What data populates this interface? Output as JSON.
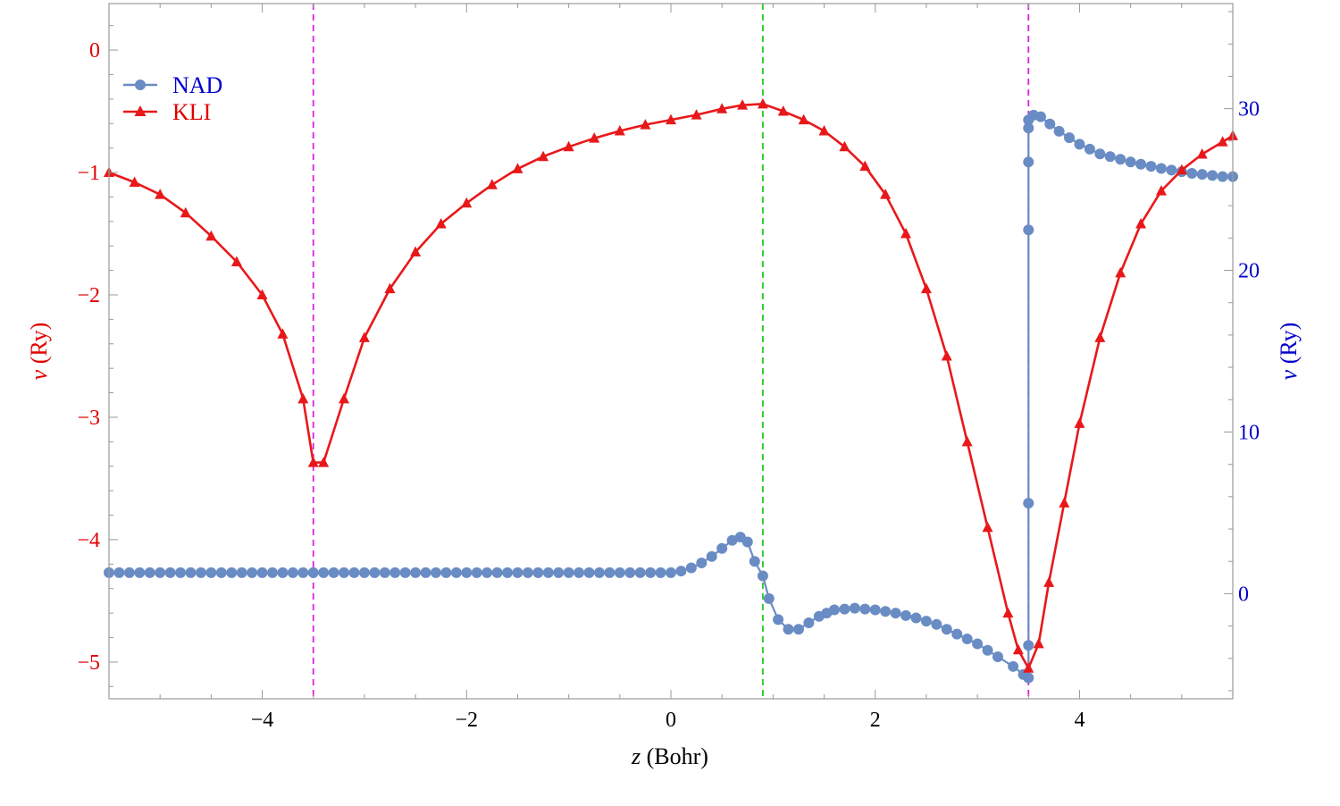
{
  "colors": {
    "left_axis": "#e00000",
    "right_axis": "#0000cc",
    "nad": "#6a8cc4",
    "kli": "#e8181a",
    "atom_line": "#dd22dd",
    "bond_line": "#22cc22",
    "frame": "#999999",
    "bottom_axis_text": "#000000"
  },
  "chart_data": {
    "type": "line",
    "xlabel_var": "z",
    "xlabel_unit": "(Bohr)",
    "ylabel_left_var": "v",
    "ylabel_left_unit": "(Ry)",
    "ylabel_right_var": "v",
    "ylabel_right_unit": "(Ry)",
    "xlim": [
      -5.5,
      5.5
    ],
    "ylim_left": [
      -5.3,
      0.38
    ],
    "ylim_right": [
      -6.5,
      36.5
    ],
    "xticks": [
      -4,
      -2,
      0,
      2,
      4
    ],
    "xtick_labels": [
      "−4",
      "−2",
      "0",
      "2",
      "4"
    ],
    "yticks_left": [
      0,
      -1,
      -2,
      -3,
      -4,
      -5
    ],
    "ytick_labels_left": [
      "0",
      "−1",
      "−2",
      "−3",
      "−4",
      "−5"
    ],
    "yticks_right": [
      0,
      10,
      20,
      30
    ],
    "ytick_labels_right": [
      "0",
      "10",
      "20",
      "30"
    ],
    "vlines": [
      {
        "x": -3.5,
        "kind": "atom"
      },
      {
        "x": 0.9,
        "kind": "bond"
      },
      {
        "x": 3.5,
        "kind": "atom"
      }
    ],
    "legend": {
      "position": "top-left",
      "entries": [
        "NAD",
        "KLI"
      ]
    },
    "series": [
      {
        "name": "NAD",
        "axis": "right",
        "marker": "circle",
        "points": [
          [
            -5.5,
            1.3
          ],
          [
            -3.5,
            1.3
          ],
          [
            0.0,
            1.3
          ],
          [
            0.1,
            1.4
          ],
          [
            0.2,
            1.6
          ],
          [
            0.3,
            1.9
          ],
          [
            0.4,
            2.3
          ],
          [
            0.5,
            2.8
          ],
          [
            0.6,
            3.3
          ],
          [
            0.68,
            3.5
          ],
          [
            0.75,
            3.2
          ],
          [
            0.82,
            2.0
          ],
          [
            0.9,
            1.1
          ],
          [
            0.96,
            -0.3
          ],
          [
            1.05,
            -1.6
          ],
          [
            1.15,
            -2.2
          ],
          [
            1.25,
            -2.2
          ],
          [
            1.35,
            -1.8
          ],
          [
            1.45,
            -1.4
          ],
          [
            1.6,
            -1.0
          ],
          [
            1.8,
            -0.9
          ],
          [
            2.0,
            -1.0
          ],
          [
            2.2,
            -1.2
          ],
          [
            2.4,
            -1.5
          ],
          [
            2.6,
            -1.9
          ],
          [
            2.8,
            -2.5
          ],
          [
            3.0,
            -3.1
          ],
          [
            3.2,
            -3.9
          ],
          [
            3.35,
            -4.5
          ],
          [
            3.45,
            -5.0
          ],
          [
            3.5,
            -5.2
          ],
          [
            3.5,
            -3.2
          ],
          [
            3.5,
            5.6
          ],
          [
            3.5,
            22.5
          ],
          [
            3.5,
            26.7
          ],
          [
            3.5,
            28.8
          ],
          [
            3.5,
            29.3
          ],
          [
            3.55,
            29.6
          ],
          [
            3.62,
            29.5
          ],
          [
            3.8,
            28.6
          ],
          [
            4.0,
            27.8
          ],
          [
            4.2,
            27.2
          ],
          [
            4.5,
            26.7
          ],
          [
            4.8,
            26.3
          ],
          [
            5.1,
            26.0
          ],
          [
            5.4,
            25.8
          ],
          [
            5.5,
            25.8
          ]
        ]
      },
      {
        "name": "KLI",
        "axis": "left",
        "marker": "triangle",
        "points": [
          [
            -5.5,
            -1.0
          ],
          [
            -5.25,
            -1.08
          ],
          [
            -5.0,
            -1.18
          ],
          [
            -4.75,
            -1.33
          ],
          [
            -4.5,
            -1.52
          ],
          [
            -4.25,
            -1.73
          ],
          [
            -4.0,
            -2.0
          ],
          [
            -3.8,
            -2.32
          ],
          [
            -3.6,
            -2.85
          ],
          [
            -3.5,
            -3.37
          ],
          [
            -3.4,
            -3.37
          ],
          [
            -3.2,
            -2.85
          ],
          [
            -3.0,
            -2.35
          ],
          [
            -2.75,
            -1.95
          ],
          [
            -2.5,
            -1.65
          ],
          [
            -2.25,
            -1.42
          ],
          [
            -2.0,
            -1.25
          ],
          [
            -1.75,
            -1.1
          ],
          [
            -1.5,
            -0.97
          ],
          [
            -1.25,
            -0.87
          ],
          [
            -1.0,
            -0.79
          ],
          [
            -0.75,
            -0.72
          ],
          [
            -0.5,
            -0.66
          ],
          [
            -0.25,
            -0.61
          ],
          [
            0.0,
            -0.57
          ],
          [
            0.25,
            -0.53
          ],
          [
            0.5,
            -0.48
          ],
          [
            0.7,
            -0.45
          ],
          [
            0.9,
            -0.44
          ],
          [
            1.1,
            -0.5
          ],
          [
            1.3,
            -0.57
          ],
          [
            1.5,
            -0.66
          ],
          [
            1.7,
            -0.79
          ],
          [
            1.9,
            -0.95
          ],
          [
            2.1,
            -1.18
          ],
          [
            2.3,
            -1.5
          ],
          [
            2.5,
            -1.95
          ],
          [
            2.7,
            -2.5
          ],
          [
            2.9,
            -3.2
          ],
          [
            3.1,
            -3.9
          ],
          [
            3.3,
            -4.6
          ],
          [
            3.4,
            -4.9
          ],
          [
            3.5,
            -5.05
          ],
          [
            3.6,
            -4.85
          ],
          [
            3.7,
            -4.35
          ],
          [
            3.85,
            -3.7
          ],
          [
            4.0,
            -3.05
          ],
          [
            4.2,
            -2.35
          ],
          [
            4.4,
            -1.82
          ],
          [
            4.6,
            -1.42
          ],
          [
            4.8,
            -1.15
          ],
          [
            5.0,
            -0.98
          ],
          [
            5.2,
            -0.85
          ],
          [
            5.4,
            -0.75
          ],
          [
            5.5,
            -0.7
          ]
        ]
      }
    ]
  }
}
